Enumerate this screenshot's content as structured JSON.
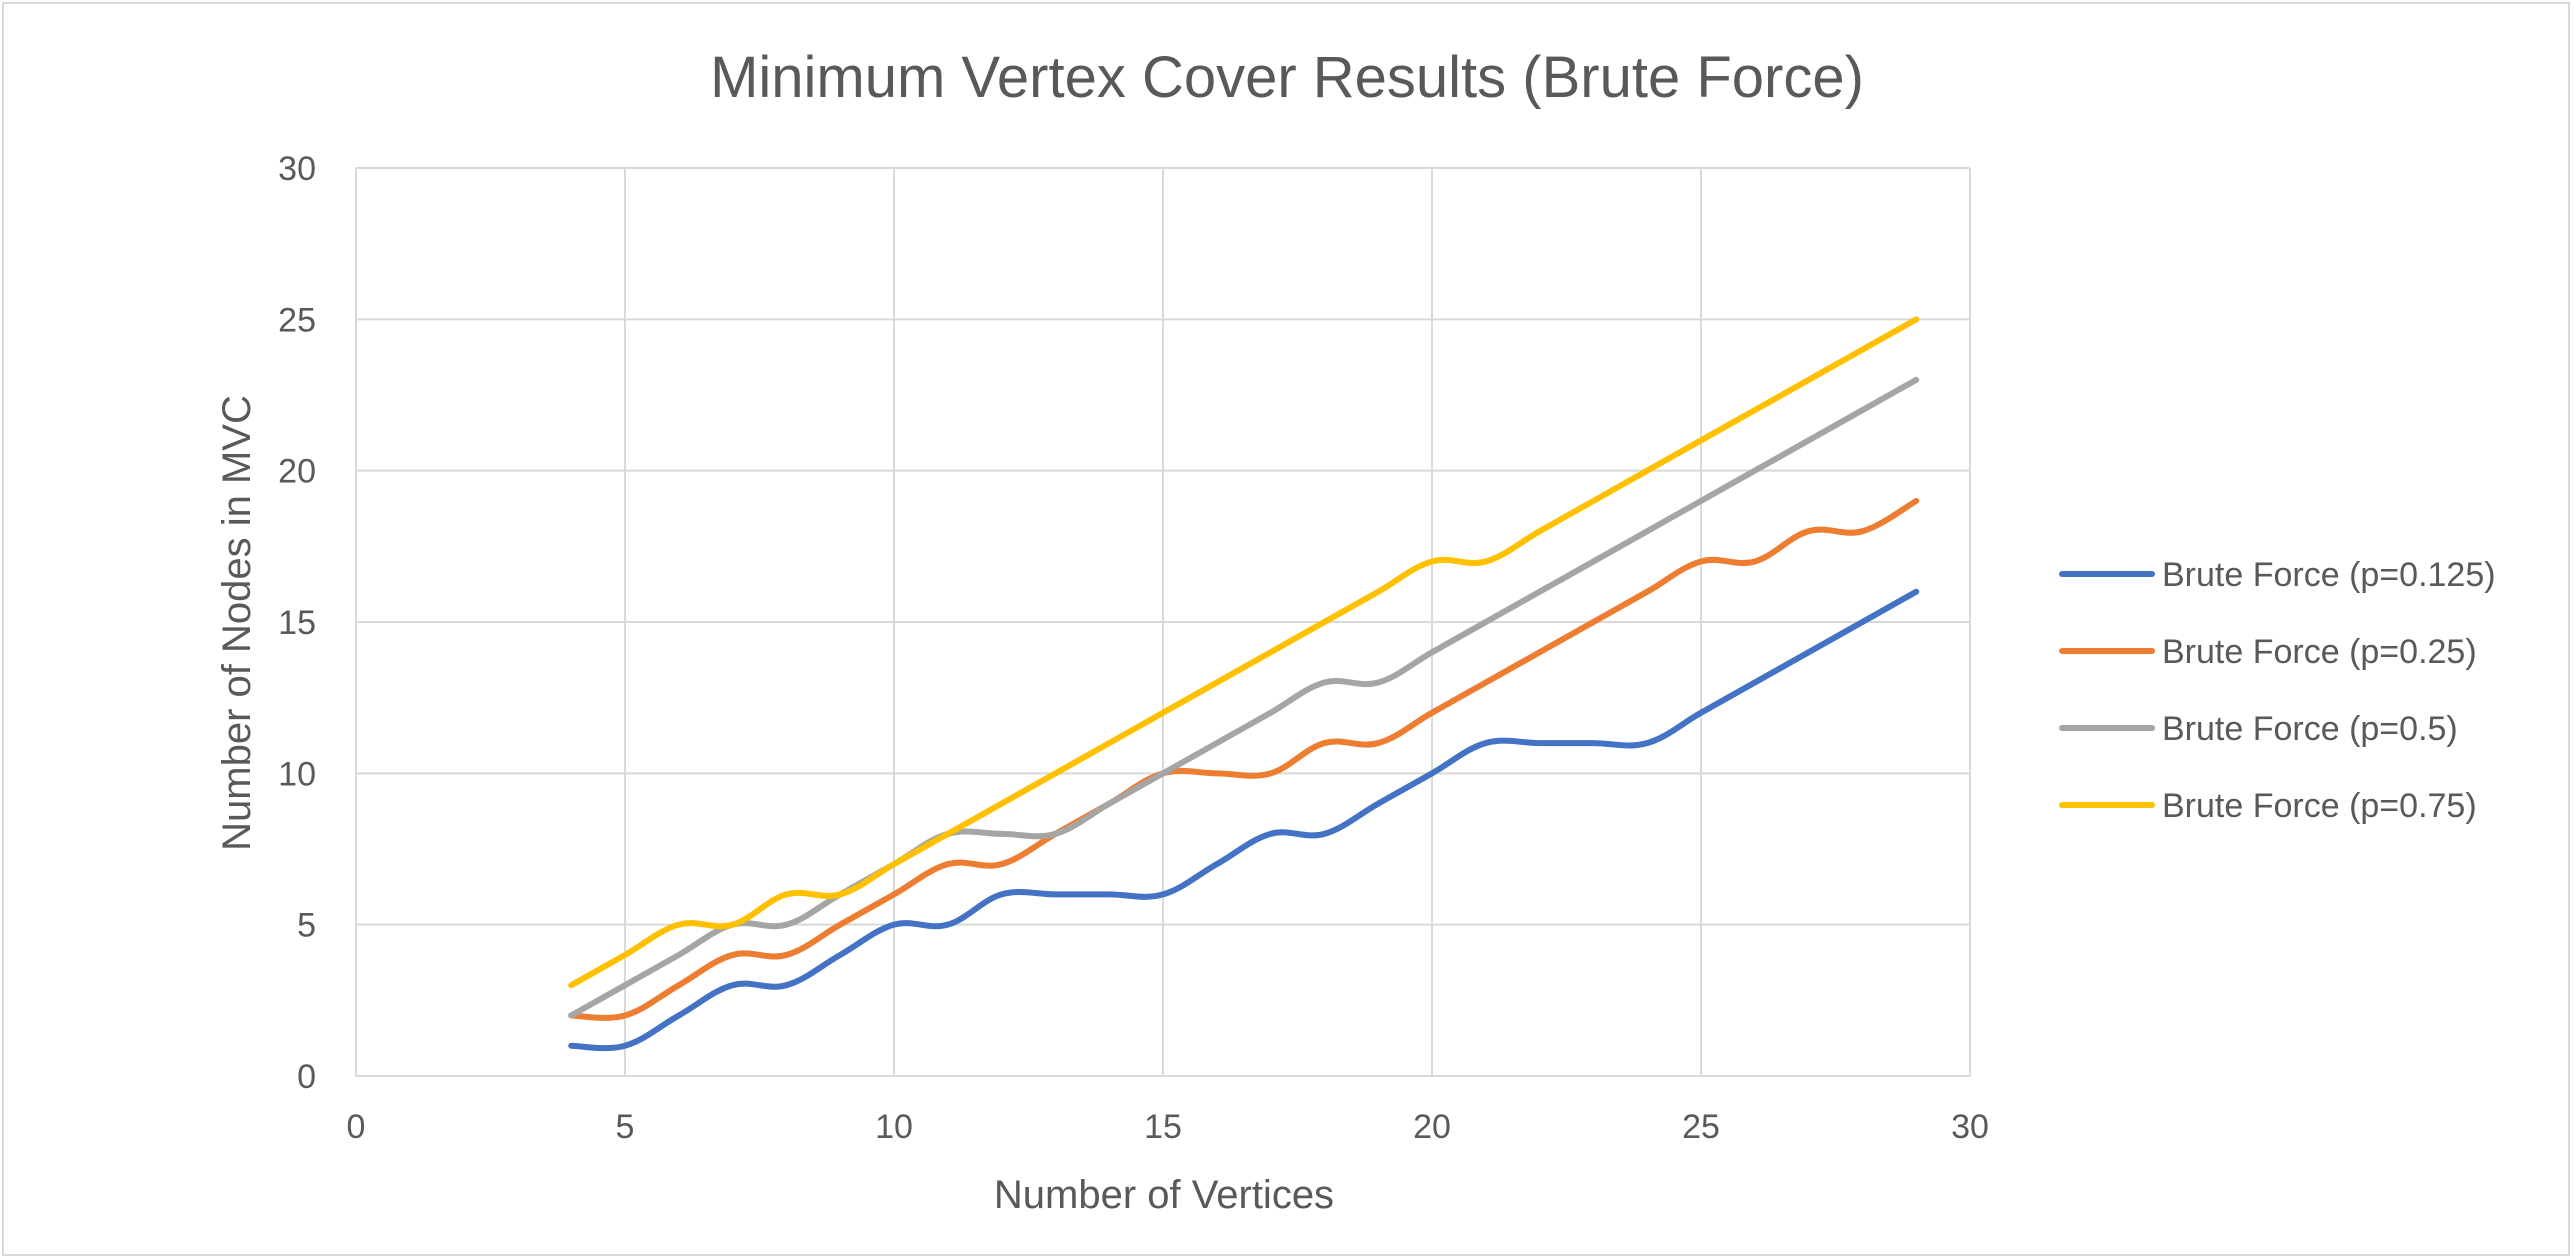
{
  "chart_data": {
    "type": "line",
    "title": "Minimum Vertex Cover Results (Brute Force)",
    "xlabel": "Number of Vertices",
    "ylabel": "Number of Nodes in MVC",
    "xlim": [
      0,
      30
    ],
    "ylim": [
      0,
      30
    ],
    "xticks": [
      0,
      5,
      10,
      15,
      20,
      25,
      30
    ],
    "yticks": [
      0,
      5,
      10,
      15,
      20,
      25,
      30
    ],
    "grid": true,
    "legend_position": "right",
    "x": [
      4,
      5,
      6,
      7,
      8,
      9,
      10,
      11,
      12,
      13,
      14,
      15,
      16,
      17,
      18,
      19,
      20,
      21,
      22,
      23,
      24,
      25,
      26,
      27,
      28,
      29
    ],
    "series": [
      {
        "name": "Brute Force (p=0.125)",
        "color": "#4472c4",
        "values": [
          1,
          1,
          2,
          3,
          3,
          4,
          5,
          5,
          6,
          6,
          6,
          6,
          7,
          8,
          8,
          9,
          10,
          11,
          11,
          11,
          11,
          12,
          13,
          14,
          15,
          16
        ]
      },
      {
        "name": "Brute Force (p=0.25)",
        "color": "#ed7d31",
        "values": [
          2,
          2,
          3,
          4,
          4,
          5,
          6,
          7,
          7,
          8,
          9,
          10,
          10,
          10,
          11,
          11,
          12,
          13,
          14,
          15,
          16,
          17,
          17,
          18,
          18,
          19
        ]
      },
      {
        "name": "Brute Force (p=0.5)",
        "color": "#a5a5a5",
        "values": [
          2,
          3,
          4,
          5,
          5,
          6,
          7,
          8,
          8,
          8,
          9,
          10,
          11,
          12,
          13,
          13,
          14,
          15,
          16,
          17,
          18,
          19,
          20,
          21,
          22,
          23
        ]
      },
      {
        "name": "Brute Force (p=0.75)",
        "color": "#ffc000",
        "values": [
          3,
          4,
          5,
          5,
          6,
          6,
          7,
          8,
          9,
          10,
          11,
          12,
          13,
          14,
          15,
          16,
          17,
          17,
          18,
          19,
          20,
          21,
          22,
          23,
          24,
          25
        ]
      }
    ]
  }
}
